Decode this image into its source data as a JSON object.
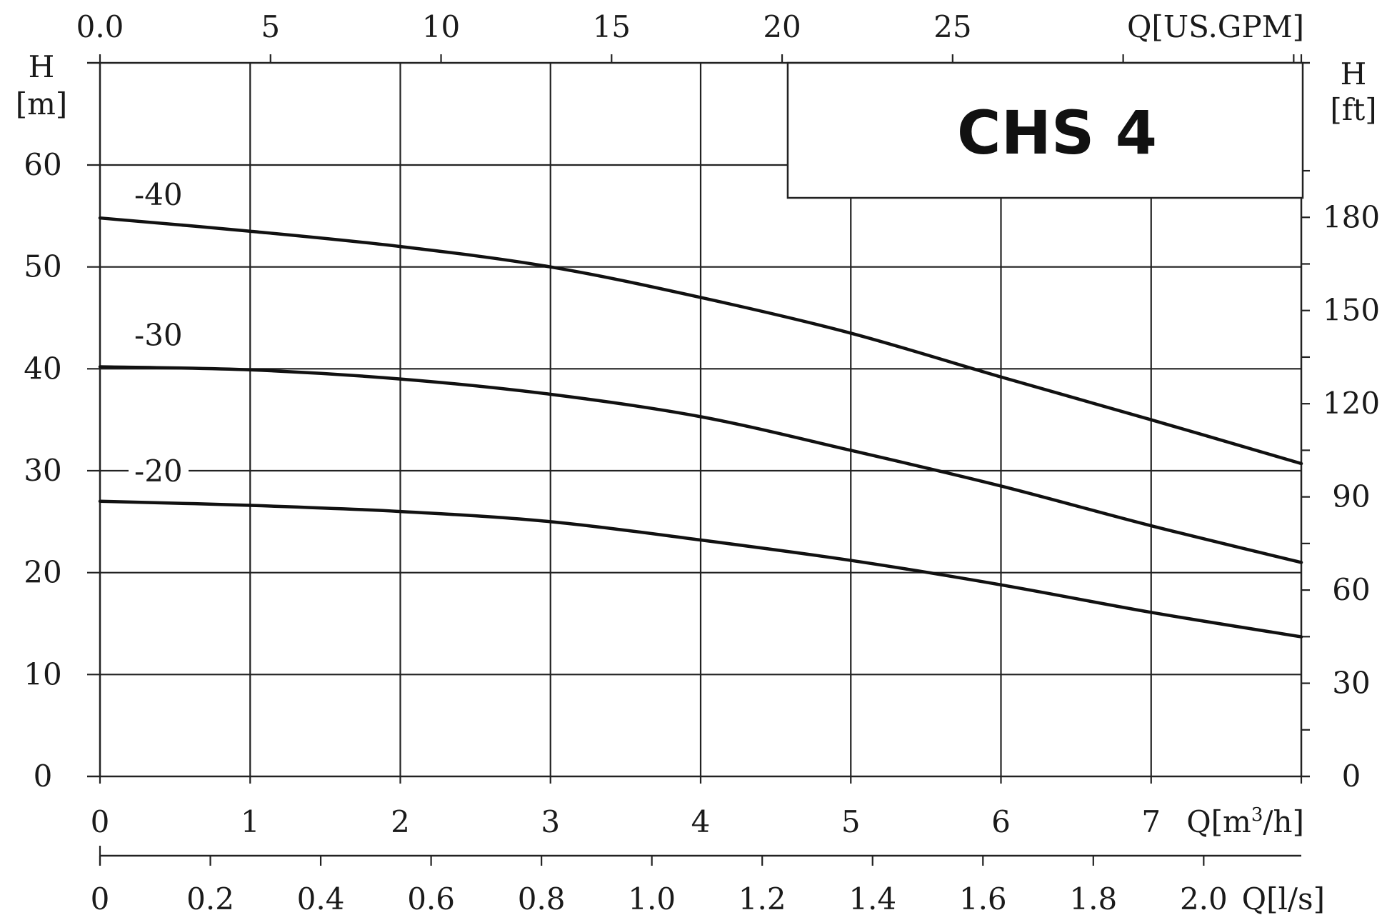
{
  "chart_data": {
    "type": "line",
    "title": "CHS 4",
    "x": [
      0,
      1,
      2,
      3,
      4,
      5,
      6,
      7,
      8
    ],
    "series": [
      {
        "name": "-40",
        "values": [
          54.8,
          53.5,
          52.0,
          50.0,
          47.0,
          43.5,
          39.2,
          35.0,
          30.7
        ]
      },
      {
        "name": "-30",
        "values": [
          40.2,
          39.9,
          39.0,
          37.5,
          35.3,
          32.0,
          28.5,
          24.6,
          21.0
        ]
      },
      {
        "name": "-20",
        "values": [
          27.0,
          26.6,
          26.0,
          25.0,
          23.2,
          21.2,
          18.8,
          16.1,
          13.7
        ]
      }
    ],
    "xlim": [
      0,
      8
    ],
    "ylim": [
      0,
      60
    ],
    "grid": true,
    "bottom_axis": {
      "label": "Q[m³/h]",
      "ticks": [
        "0",
        "1",
        "2",
        "3",
        "4",
        "5",
        "6",
        "7"
      ]
    },
    "secondary_bottom_axis": {
      "label": "Q[l/s]",
      "ticks": [
        "0",
        "0.2",
        "0.4",
        "0.6",
        "0.8",
        "1.0",
        "1.2",
        "1.4",
        "1.6",
        "1.8",
        "2.0"
      ],
      "tick_values": [
        0,
        0.2,
        0.4,
        0.6,
        0.8,
        1.0,
        1.2,
        1.4,
        1.6,
        1.8,
        2.0
      ]
    },
    "top_axis": {
      "label": "Q[US.GPM]",
      "ticks": [
        "0.0",
        "5",
        "10",
        "15",
        "20",
        "25"
      ],
      "tick_values": [
        0,
        5,
        10,
        15,
        20,
        25
      ]
    },
    "left_axis": {
      "label_line1": "H",
      "label_line2": "[m]",
      "ticks": [
        "0",
        "10",
        "20",
        "30",
        "40",
        "50",
        "60"
      ],
      "tick_values": [
        0,
        10,
        20,
        30,
        40,
        50,
        60
      ]
    },
    "right_axis": {
      "label_line1": "H",
      "label_line2": "[ft]",
      "ticks": [
        "0",
        "30",
        "60",
        "90",
        "120",
        "150",
        "180"
      ],
      "tick_values": [
        0,
        30,
        60,
        90,
        120,
        150,
        180
      ]
    }
  }
}
